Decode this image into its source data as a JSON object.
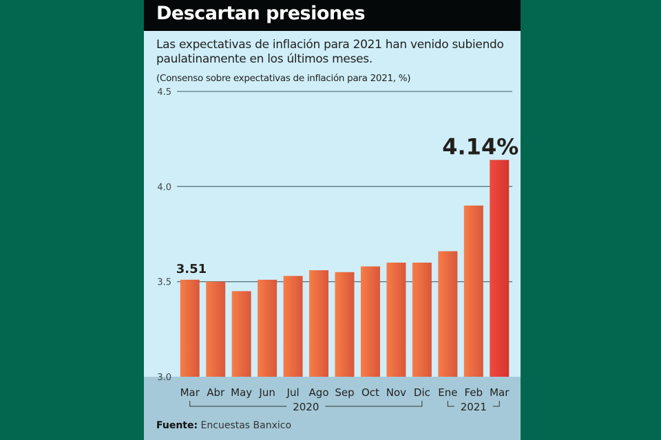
{
  "header": {
    "title": "Descartan presiones",
    "subtitle": "Las expectativas de inflación para 2021 han venido subiendo paulatinamente en los últimos meses.",
    "note": "(Consenso sobre expectativas de inflación para 2021, %)"
  },
  "footer": {
    "source_label": "Fuente:",
    "source_text": "Encuestas Banxico"
  },
  "colors": {
    "background": "#03674f",
    "panel": "#cfeef8",
    "bar": "#f26a3a",
    "bar_highlight": "#e63b35"
  },
  "chart_data": {
    "type": "bar",
    "title": "Descartan presiones",
    "xlabel": "",
    "ylabel": "Consenso sobre expectativas de inflación para 2021, %",
    "ylim": [
      3.0,
      4.5
    ],
    "yticks": [
      "3.0",
      "3.5",
      "4.0",
      "4.5"
    ],
    "grid": true,
    "categories": [
      "Mar",
      "Abr",
      "May",
      "Jun",
      "Jul",
      "Ago",
      "Sep",
      "Oct",
      "Nov",
      "Dic",
      "Ene",
      "Feb",
      "Mar"
    ],
    "values": [
      3.51,
      3.5,
      3.45,
      3.51,
      3.53,
      3.56,
      3.55,
      3.58,
      3.6,
      3.6,
      3.66,
      3.9,
      4.14
    ],
    "year_groups": [
      {
        "label": "2020",
        "start": 0,
        "end": 9
      },
      {
        "label": "2021",
        "start": 10,
        "end": 12
      }
    ],
    "annotations": [
      {
        "index": 0,
        "text": "3.51"
      },
      {
        "index": 12,
        "text": "4.14%"
      }
    ]
  }
}
